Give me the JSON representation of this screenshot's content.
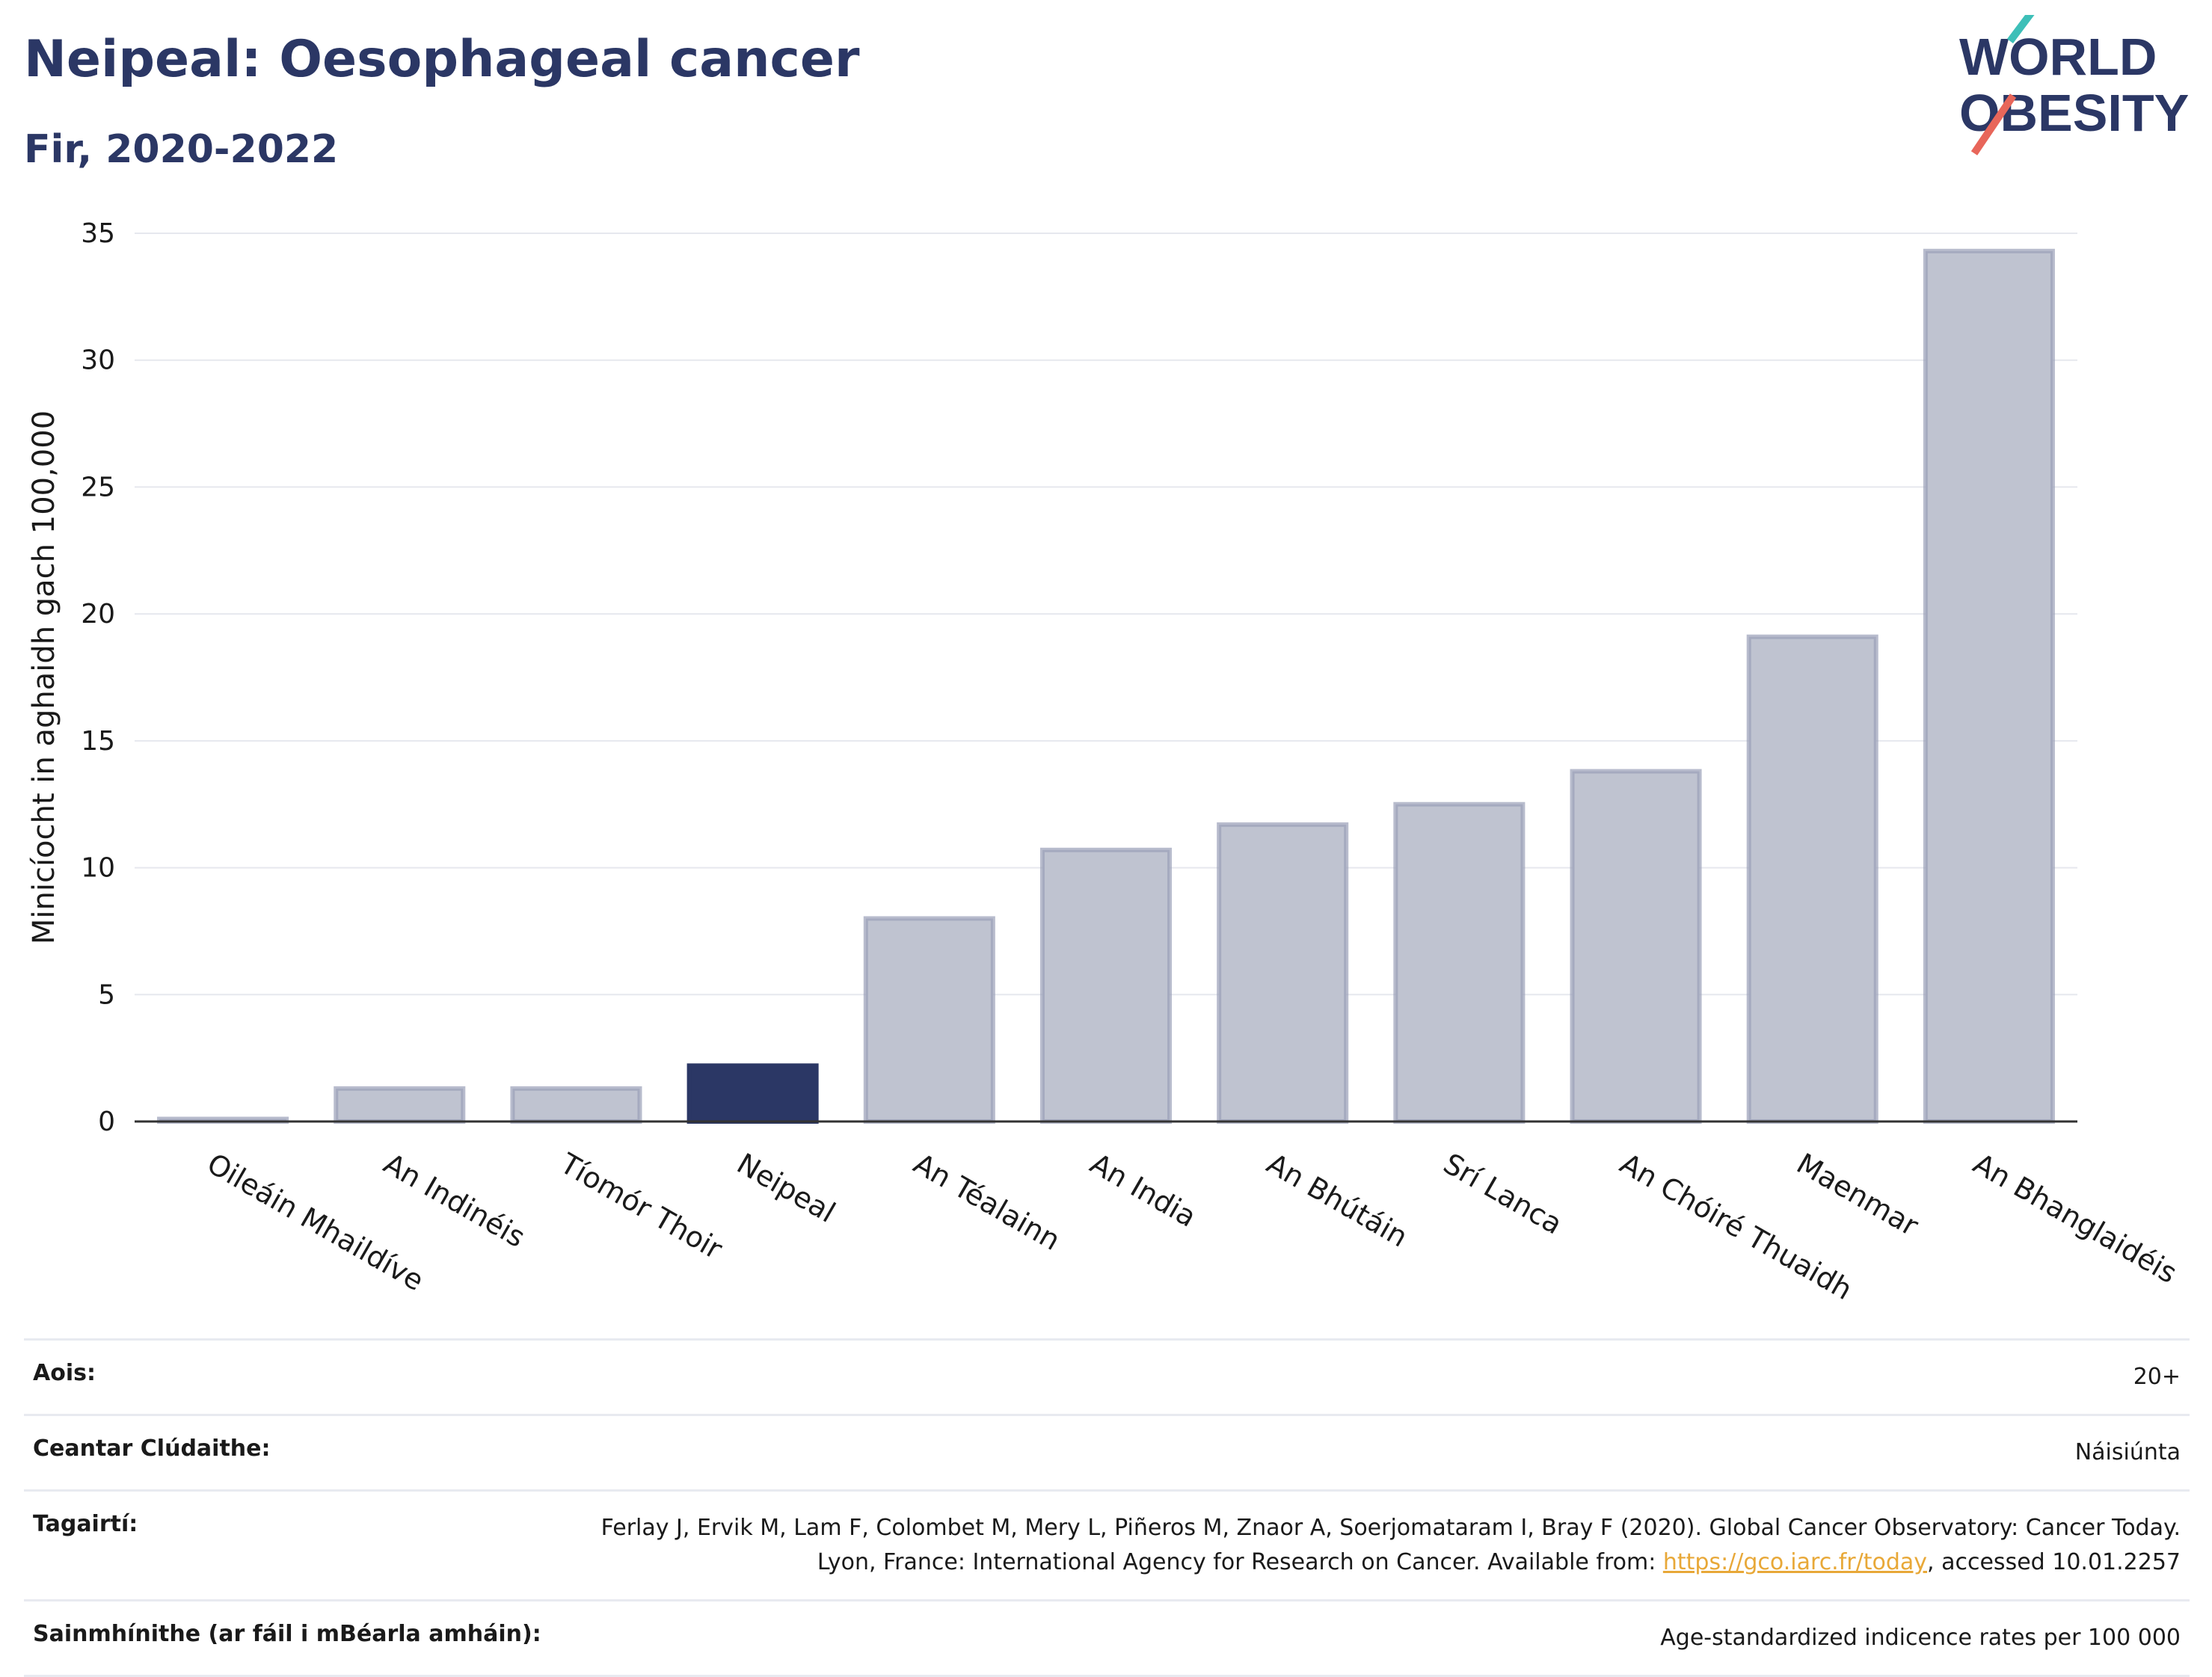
{
  "header": {
    "title": "Neipeal: Oesophageal cancer",
    "subtitle": "Fir, 2020-2022"
  },
  "logo": {
    "line1": "WORLD",
    "line2": "OBESITY",
    "accent_teal": "#3dbfb8",
    "accent_red": "#e8665a",
    "brand_navy": "#2b3765"
  },
  "chart_data": {
    "type": "bar",
    "ylabel": "Minicíocht in aghaidh gach 100,000",
    "xlabel": "",
    "ylim": [
      0,
      35
    ],
    "yticks": [
      0,
      5,
      10,
      15,
      20,
      25,
      30,
      35
    ],
    "grid": true,
    "categories": [
      "Oileáin Mhaildíve",
      "An Indinéis",
      "Tíomór Thoir",
      "Neipeal",
      "An Téalainn",
      "An India",
      "An Bhútáin",
      "Srí Lanca",
      "An Chóiré Thuaidh",
      "Maenmar",
      "An Bhanglaidéis"
    ],
    "values": [
      0.1,
      1.3,
      1.3,
      2.2,
      8.0,
      10.7,
      11.7,
      12.5,
      13.8,
      19.1,
      34.3
    ],
    "highlight": "Neipeal",
    "colors": {
      "highlight": "#2b3765",
      "bar": "#bfc3d0",
      "bar_stroke": "#9aa0b8"
    }
  },
  "info": {
    "rows": [
      {
        "key": "Aois:",
        "value": "20+"
      },
      {
        "key": "Ceantar Clúdaithe:",
        "value": "Náisiúnta"
      },
      {
        "key": "Tagairtí:",
        "value_pre": "Ferlay J, Ervik M, Lam F, Colombet M, Mery L, Piñeros M, Znaor A, Soerjomataram I, Bray F (2020). Global Cancer Observatory: Cancer Today. Lyon, France: International Agency for Research on Cancer. Available from: ",
        "link": "https://gco.iarc.fr/today",
        "value_post": ", accessed 10.01.2257"
      },
      {
        "key": "Sainmhínithe (ar fáil i mBéarla amháin):",
        "value": "Age-standardized indicence rates per 100 000"
      }
    ]
  }
}
